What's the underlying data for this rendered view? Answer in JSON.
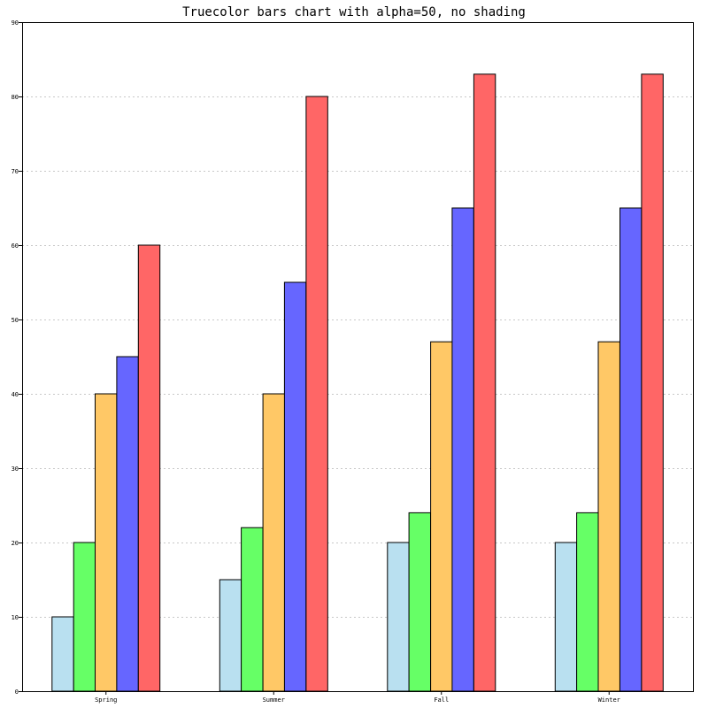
{
  "chart_data": {
    "type": "bar",
    "title": "Truecolor bars chart with alpha=50, no shading",
    "xlabel": "",
    "ylabel": "",
    "categories": [
      "Spring",
      "Summer",
      "Fall",
      "Winter"
    ],
    "series": [
      {
        "values": [
          10,
          15,
          20,
          20
        ],
        "color": "#b9e0f0"
      },
      {
        "values": [
          20,
          22,
          24,
          24
        ],
        "color": "#66ff66"
      },
      {
        "values": [
          40,
          40,
          47,
          47
        ],
        "color": "#ffc866"
      },
      {
        "values": [
          45,
          55,
          65,
          65
        ],
        "color": "#6666ff"
      },
      {
        "values": [
          60,
          80,
          83,
          83
        ],
        "color": "#ff6666"
      }
    ],
    "ylim": [
      0,
      90
    ],
    "yticks": [
      "0",
      "10",
      "20",
      "30",
      "40",
      "50",
      "60",
      "70",
      "80",
      "90"
    ],
    "grid": true,
    "legend": false
  }
}
